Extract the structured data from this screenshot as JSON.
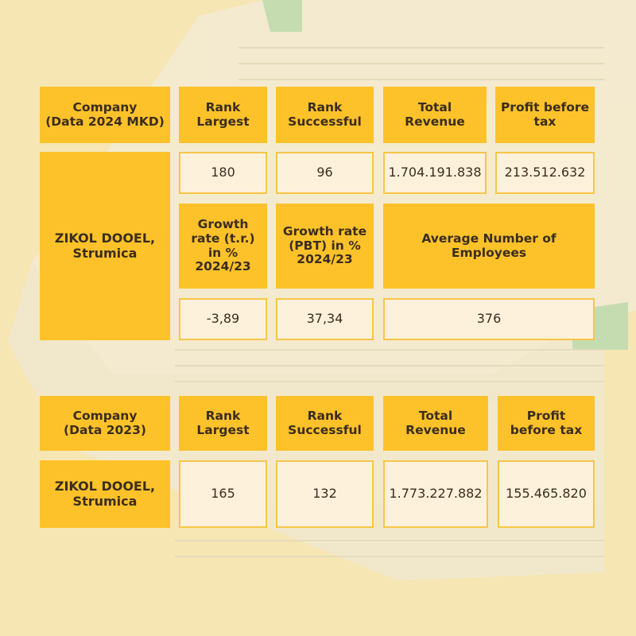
{
  "colors": {
    "header": "#fdc22a",
    "value_bg": "#fdf1dc",
    "background": "#f5e6b4"
  },
  "table_2024": {
    "headers": {
      "company": "Company\n(Data 2024 MKD)",
      "rank_largest": "Rank\nLargest",
      "rank_successful": "Rank\nSuccessful",
      "total_revenue": "Total\nRevenue",
      "profit_before_tax": "Profit before\ntax",
      "growth_tr": "Growth\nrate (t.r.)\nin %\n2024/23",
      "growth_pbt": "Growth rate\n(PBT) in %\n2024/23",
      "avg_employees": "Average Number of\nEmployees"
    },
    "company": "ZIKOL DOOEL,\nStrumica",
    "rank_largest": "180",
    "rank_successful": "96",
    "total_revenue": "1.704.191.838",
    "profit_before_tax": "213.512.632",
    "growth_tr": "-3,89",
    "growth_pbt": "37,34",
    "avg_employees": "376"
  },
  "table_2023": {
    "headers": {
      "company": "Company\n(Data 2023)",
      "rank_largest": "Rank\nLargest",
      "rank_successful": "Rank\nSuccessful",
      "total_revenue": "Total\nRevenue",
      "profit_before_tax": "Profit\nbefore tax"
    },
    "company": "ZIKOL DOOEL,\nStrumica",
    "rank_largest": "165",
    "rank_successful": "132",
    "total_revenue": "1.773.227.882",
    "profit_before_tax": "155.465.820"
  }
}
